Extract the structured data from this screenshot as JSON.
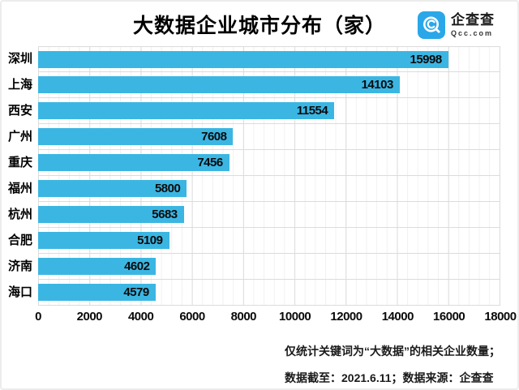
{
  "header": {
    "title": "大数据企业城市分布（家）",
    "logo": {
      "name": "企查查",
      "domain": "Qcc.com",
      "icon_color": "#2aa7e8"
    }
  },
  "chart_data": {
    "type": "bar",
    "orientation": "horizontal",
    "title": "大数据企业城市分布（家）",
    "categories": [
      "深圳",
      "上海",
      "西安",
      "广州",
      "重庆",
      "福州",
      "杭州",
      "合肥",
      "济南",
      "海口"
    ],
    "values": [
      15998,
      14103,
      11554,
      7608,
      7456,
      5800,
      5683,
      5109,
      4602,
      4579
    ],
    "xlabel": "",
    "ylabel": "",
    "xlim": [
      0,
      18000
    ],
    "x_ticks": [
      0,
      2000,
      4000,
      6000,
      8000,
      10000,
      12000,
      14000,
      16000,
      18000
    ],
    "minor_grid_unit": 400,
    "grid": "vertical major+minor, horizontal category separators",
    "legend": "none",
    "value_labels": "inside bar end",
    "bar_color": "#3bb6e3"
  },
  "footer": {
    "line1": "仅统计关键词为“大数据”的相关企业数量；",
    "line2": "数据截至：2021.6.11；数据来源：企查查"
  }
}
